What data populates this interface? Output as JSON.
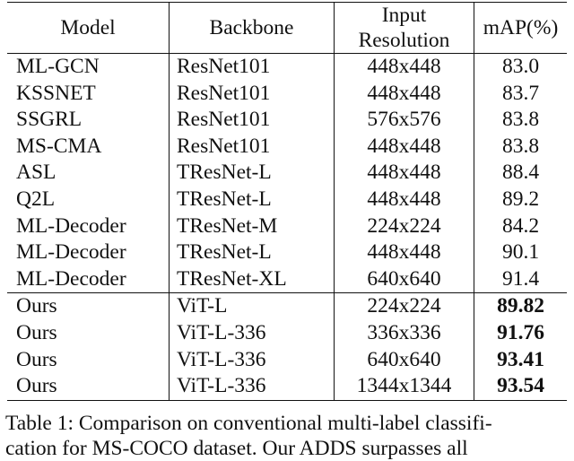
{
  "table": {
    "headers": [
      "Model",
      "Backbone",
      "Input\nResolution",
      "mAP(%)"
    ],
    "header_resolution_line1": "Input",
    "header_resolution_line2": "Resolution",
    "rows": [
      [
        "ML-GCN",
        "ResNet101",
        "448x448",
        "83.0"
      ],
      [
        "KSSNET",
        "ResNet101",
        "448x448",
        "83.7"
      ],
      [
        "SSGRL",
        "ResNet101",
        "576x576",
        "83.8"
      ],
      [
        "MS-CMA",
        "ResNet101",
        "448x448",
        "83.8"
      ],
      [
        "ASL",
        "TResNet-L",
        "448x448",
        "88.4"
      ],
      [
        "Q2L",
        "TResNet-L",
        "448x448",
        "89.2"
      ],
      [
        "ML-Decoder",
        "TResNet-M",
        "224x224",
        "84.2"
      ],
      [
        "ML-Decoder",
        "TResNet-L",
        "448x448",
        "90.1"
      ],
      [
        "ML-Decoder",
        "TResNet-XL",
        "640x640",
        "91.4"
      ]
    ],
    "ours_rows": [
      [
        "Ours",
        "ViT-L",
        "224x224",
        "89.82"
      ],
      [
        "Ours",
        "ViT-L-336",
        "336x336",
        "91.76"
      ],
      [
        "Ours",
        "ViT-L-336",
        "640x640",
        "93.41"
      ],
      [
        "Ours",
        "ViT-L-336",
        "1344x1344",
        "93.54"
      ]
    ]
  },
  "caption": {
    "line1": "Table 1: Comparison on conventional multi-label classifi-",
    "line2": "cation for MS-COCO dataset. Our ADDS surpasses all"
  }
}
